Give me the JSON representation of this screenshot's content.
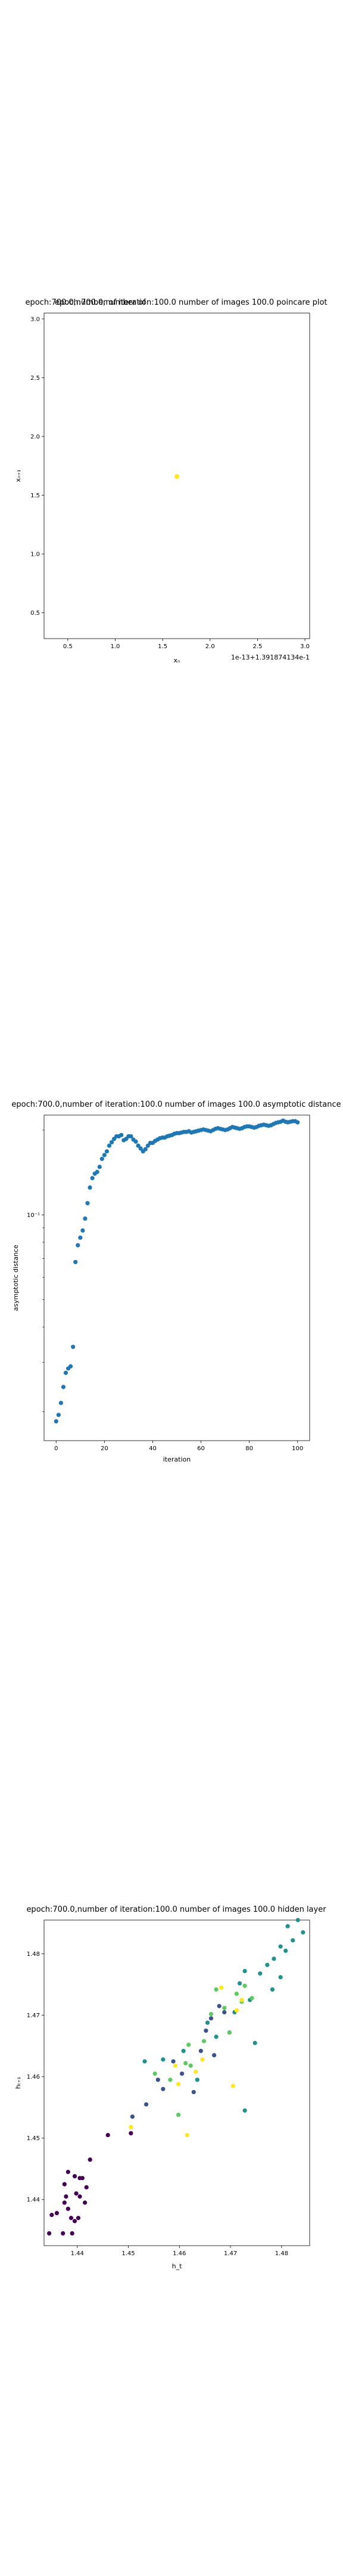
{
  "chart_data": [
    {
      "type": "scatter",
      "title": "epoch:700.0,number of iteration:100.0  number of images 100.0 poincare plot",
      "overlay_text": "epoch:700.0,number of",
      "xlabel": "xₙ",
      "ylabel": "xₙ₊₁",
      "x_offset_text": "1e-13+1.391874134e-1",
      "xlim": [
        0.25,
        3.05
      ],
      "ylim": [
        0.28,
        3.05
      ],
      "xticks": [
        "0.5",
        "1.0",
        "1.5",
        "2.0",
        "2.5",
        "3.0"
      ],
      "yticks": [
        "0.5",
        "1.0",
        "1.5",
        "2.0",
        "2.5",
        "3.0"
      ],
      "grid": false,
      "colors": [
        "#fde725"
      ],
      "points": [
        [
          1.65,
          1.66
        ]
      ]
    },
    {
      "type": "scatter",
      "title": "epoch:700.0,number of iteration:100.0  number of images 100.0 asymptotic distance",
      "xlabel": "iteration",
      "ylabel": "asymptotic distance",
      "yscale": "log",
      "xlim": [
        -5,
        105
      ],
      "ylim": [
        0.0158,
        0.226
      ],
      "xticks": [
        "0",
        "20",
        "40",
        "60",
        "80",
        "100"
      ],
      "yticks": [
        "10⁻¹"
      ],
      "grid": false,
      "colors": [
        "#1f77b4"
      ],
      "x": [
        0,
        1,
        2,
        3,
        4,
        5,
        6,
        7,
        8,
        9,
        10,
        11,
        12,
        13,
        14,
        15,
        16,
        17,
        18,
        19,
        20,
        21,
        22,
        23,
        24,
        25,
        26,
        27,
        28,
        29,
        30,
        31,
        32,
        33,
        34,
        35,
        36,
        37,
        38,
        39,
        40,
        41,
        42,
        43,
        44,
        45,
        46,
        47,
        48,
        49,
        50,
        51,
        52,
        53,
        54,
        55,
        56,
        57,
        58,
        59,
        60,
        61,
        62,
        63,
        64,
        65,
        66,
        67,
        68,
        69,
        70,
        71,
        72,
        73,
        74,
        75,
        76,
        77,
        78,
        79,
        80,
        81,
        82,
        83,
        84,
        85,
        86,
        87,
        88,
        89,
        90,
        91,
        92,
        93,
        94,
        95,
        96,
        97,
        98,
        99,
        100
      ],
      "y": [
        0.0185,
        0.0195,
        0.0215,
        0.0245,
        0.0275,
        0.0285,
        0.029,
        0.034,
        0.068,
        0.078,
        0.083,
        0.088,
        0.097,
        0.11,
        0.125,
        0.135,
        0.14,
        0.142,
        0.148,
        0.158,
        0.163,
        0.168,
        0.176,
        0.181,
        0.186,
        0.19,
        0.19,
        0.192,
        0.184,
        0.186,
        0.19,
        0.19,
        0.185,
        0.182,
        0.176,
        0.172,
        0.168,
        0.171,
        0.176,
        0.18,
        0.18,
        0.183,
        0.185,
        0.187,
        0.188,
        0.188,
        0.19,
        0.191,
        0.192,
        0.194,
        0.195,
        0.195,
        0.196,
        0.197,
        0.197,
        0.198,
        0.196,
        0.197,
        0.198,
        0.199,
        0.2,
        0.201,
        0.2,
        0.199,
        0.198,
        0.2,
        0.202,
        0.203,
        0.202,
        0.201,
        0.2,
        0.201,
        0.203,
        0.205,
        0.204,
        0.203,
        0.202,
        0.203,
        0.205,
        0.206,
        0.206,
        0.205,
        0.204,
        0.205,
        0.207,
        0.208,
        0.209,
        0.208,
        0.207,
        0.208,
        0.21,
        0.212,
        0.213,
        0.214,
        0.216,
        0.214,
        0.213,
        0.214,
        0.215,
        0.215,
        0.213
      ]
    },
    {
      "type": "scatter",
      "title": "epoch:700.0,number of iteration:100.0  number of images 100.0 hidden layer",
      "xlabel": "h_t",
      "ylabel": "hₜ₊₁",
      "xlim": [
        1.4335,
        1.4855
      ],
      "ylim": [
        1.4325,
        1.4855
      ],
      "xticks": [
        "1.44",
        "1.45",
        "1.46",
        "1.47",
        "1.48"
      ],
      "yticks": [
        "1.44",
        "1.45",
        "1.46",
        "1.47",
        "1.48"
      ],
      "grid": false,
      "colors": [
        "#440154",
        "#3b528b",
        "#21918c",
        "#5ec962",
        "#fde725"
      ],
      "points": [
        [
          1.4345,
          1.4345,
          0
        ],
        [
          1.435,
          1.4375,
          0
        ],
        [
          1.436,
          1.4378,
          0
        ],
        [
          1.4372,
          1.4345,
          0
        ],
        [
          1.4375,
          1.4395,
          0
        ],
        [
          1.4378,
          1.4405,
          0
        ],
        [
          1.4382,
          1.4385,
          0
        ],
        [
          1.4388,
          1.437,
          0
        ],
        [
          1.439,
          1.4345,
          0
        ],
        [
          1.4395,
          1.4365,
          0
        ],
        [
          1.4398,
          1.441,
          0
        ],
        [
          1.4402,
          1.437,
          0
        ],
        [
          1.4405,
          1.4405,
          0
        ],
        [
          1.4405,
          1.4435,
          0
        ],
        [
          1.441,
          1.4435,
          0
        ],
        [
          1.4415,
          1.4395,
          0
        ],
        [
          1.4418,
          1.442,
          0
        ],
        [
          1.4382,
          1.4445,
          0
        ],
        [
          1.4425,
          1.4465,
          0
        ],
        [
          1.4375,
          1.4425,
          0
        ],
        [
          1.4395,
          1.4438,
          0
        ],
        [
          1.446,
          1.4505,
          0
        ],
        [
          1.4505,
          1.4508,
          0
        ],
        [
          1.4508,
          1.4535,
          1
        ],
        [
          1.4535,
          1.4555,
          1
        ],
        [
          1.4558,
          1.4595,
          1
        ],
        [
          1.4568,
          1.458,
          1
        ],
        [
          1.4588,
          1.4625,
          1
        ],
        [
          1.4605,
          1.4605,
          1
        ],
        [
          1.4628,
          1.4575,
          1
        ],
        [
          1.4642,
          1.4642,
          1
        ],
        [
          1.4652,
          1.4675,
          1
        ],
        [
          1.4662,
          1.4695,
          1
        ],
        [
          1.4668,
          1.4635,
          1
        ],
        [
          1.4678,
          1.4715,
          1
        ],
        [
          1.4688,
          1.4705,
          1
        ],
        [
          1.4532,
          1.4625,
          2
        ],
        [
          1.4568,
          1.4628,
          2
        ],
        [
          1.4608,
          1.4642,
          2
        ],
        [
          1.4635,
          1.4595,
          2
        ],
        [
          1.4655,
          1.4688,
          2
        ],
        [
          1.4672,
          1.4665,
          2
        ],
        [
          1.4698,
          1.4672,
          2
        ],
        [
          1.4708,
          1.4705,
          2
        ],
        [
          1.4718,
          1.4752,
          2
        ],
        [
          1.4728,
          1.4772,
          2
        ],
        [
          1.4738,
          1.4725,
          2
        ],
        [
          1.4748,
          1.4655,
          2
        ],
        [
          1.4758,
          1.4768,
          2
        ],
        [
          1.4772,
          1.4782,
          2
        ],
        [
          1.4785,
          1.4792,
          2
        ],
        [
          1.4798,
          1.4812,
          2
        ],
        [
          1.4808,
          1.4805,
          2
        ],
        [
          1.4812,
          1.4845,
          2
        ],
        [
          1.4822,
          1.4822,
          2
        ],
        [
          1.4832,
          1.4855,
          2
        ],
        [
          1.4842,
          1.4835,
          2
        ],
        [
          1.4728,
          1.4545,
          2
        ],
        [
          1.4782,
          1.4742,
          2
        ],
        [
          1.4798,
          1.4762,
          2
        ],
        [
          1.4552,
          1.4605,
          3
        ],
        [
          1.4582,
          1.4595,
          3
        ],
        [
          1.4598,
          1.4538,
          3
        ],
        [
          1.4612,
          1.4622,
          3
        ],
        [
          1.4622,
          1.4618,
          3
        ],
        [
          1.4648,
          1.4658,
          3
        ],
        [
          1.4662,
          1.4702,
          3
        ],
        [
          1.4672,
          1.4742,
          3
        ],
        [
          1.4688,
          1.4712,
          3
        ],
        [
          1.4698,
          1.4672,
          3
        ],
        [
          1.4712,
          1.4735,
          3
        ],
        [
          1.4728,
          1.4748,
          3
        ],
        [
          1.4742,
          1.4728,
          3
        ],
        [
          1.4618,
          1.4652,
          3
        ],
        [
          1.4722,
          1.4722,
          3
        ],
        [
          1.4505,
          1.4518,
          4
        ],
        [
          1.4592,
          1.4618,
          4
        ],
        [
          1.4598,
          1.4588,
          4
        ],
        [
          1.4615,
          1.4505,
          4
        ],
        [
          1.4632,
          1.4608,
          4
        ],
        [
          1.4645,
          1.4628,
          4
        ],
        [
          1.4682,
          1.4745,
          4
        ],
        [
          1.4705,
          1.4585,
          4
        ],
        [
          1.4712,
          1.4708,
          4
        ],
        [
          1.4722,
          1.4725,
          4
        ]
      ]
    }
  ]
}
